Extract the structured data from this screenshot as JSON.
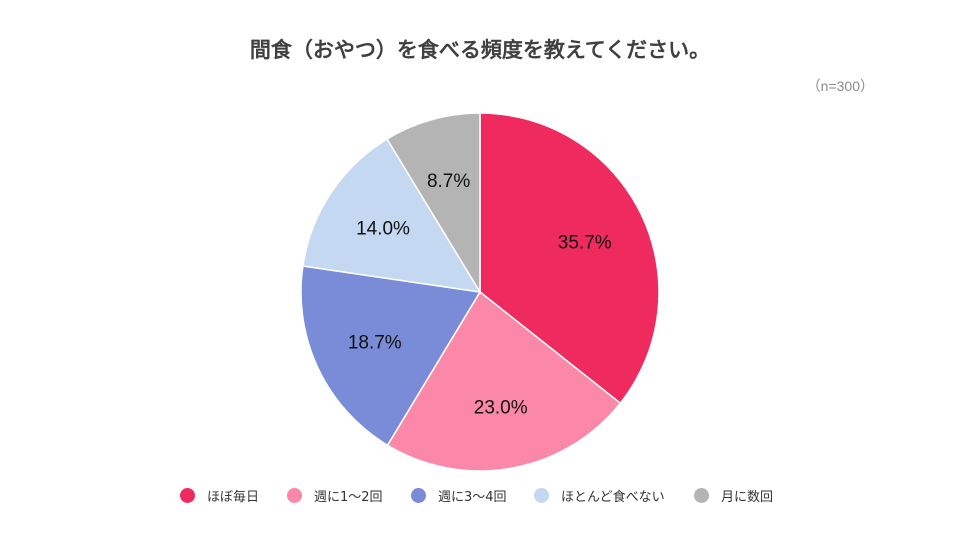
{
  "chart_data": {
    "type": "pie",
    "title": "間食（おやつ）を食べる頻度を教えてください。",
    "note": "（n=300）",
    "start_angle": "top",
    "direction": "clockwise",
    "legend_position": "bottom",
    "slices": [
      {
        "label": "ほぼ毎日",
        "value": 35.7,
        "display": "35.7%",
        "color": "#EE2A5F"
      },
      {
        "label": "週に1～2回",
        "value": 23.0,
        "display": "23.0%",
        "color": "#FB88A8"
      },
      {
        "label": "週に3～4回",
        "value": 18.7,
        "display": "18.7%",
        "color": "#7A8CD8"
      },
      {
        "label": "ほとんど食べない",
        "value": 14.0,
        "display": "14.0%",
        "color": "#C4D8F1"
      },
      {
        "label": "月に数回",
        "value": 8.7,
        "display": "8.7%",
        "color": "#B4B4B4"
      }
    ]
  }
}
